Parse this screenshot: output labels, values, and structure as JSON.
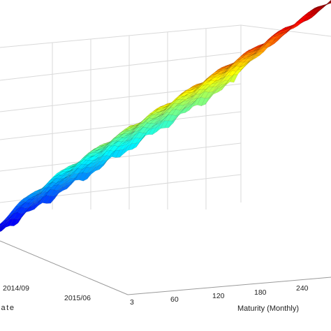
{
  "chart_data": {
    "type": "surface",
    "title": "",
    "xlabel": "Maturity (Monthly)",
    "ylabel": "Date",
    "zlabel": "",
    "x_ticks": [
      "3",
      "60",
      "120",
      "180",
      "240"
    ],
    "y_ticks": [
      "2014/09",
      "2015/06"
    ],
    "x_range": [
      3,
      300
    ],
    "colormap": "jet",
    "grid": true,
    "series": [
      {
        "maturity": [
          3,
          12,
          24,
          36,
          60,
          84,
          120,
          150,
          180,
          210,
          240,
          270,
          300
        ],
        "level": [
          0.02,
          0.03,
          0.05,
          0.08,
          0.14,
          0.2,
          0.29,
          0.36,
          0.42,
          0.48,
          0.53,
          0.57,
          0.6
        ]
      }
    ]
  }
}
